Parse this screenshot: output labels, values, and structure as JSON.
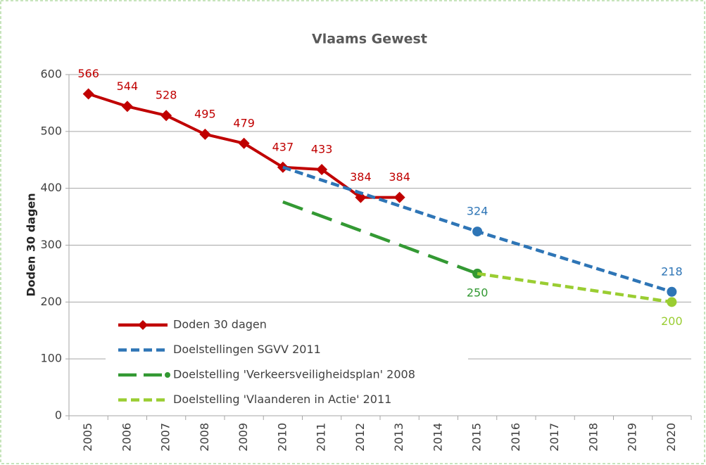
{
  "chart_data": {
    "type": "line",
    "title": "Vlaams Gewest",
    "y_label": "Doden 30 dagen",
    "categories": [
      "2005",
      "2006",
      "2007",
      "2008",
      "2009",
      "2010",
      "2011",
      "2012",
      "2013",
      "2014",
      "2015",
      "2016",
      "2017",
      "2018",
      "2019",
      "2020"
    ],
    "series": [
      {
        "name": "Doden 30 dagen",
        "color": "#c00000",
        "dash": "solid",
        "values": [
          566,
          544,
          528,
          495,
          479,
          437,
          433,
          384,
          384,
          null,
          null,
          null,
          null,
          null,
          null,
          null
        ]
      },
      {
        "name": "Doelstellingen SGVV 2011",
        "color": "#2e75b6",
        "dash": "dashed",
        "values": [
          null,
          null,
          null,
          null,
          null,
          437,
          null,
          null,
          null,
          null,
          324,
          null,
          null,
          null,
          null,
          218
        ]
      },
      {
        "name": "Doelstelling 'Verkeersveiligheidsplan' 2008",
        "color": "#339933",
        "dash": "long-dash",
        "values": [
          null,
          null,
          null,
          null,
          null,
          376,
          null,
          null,
          null,
          null,
          250,
          null,
          null,
          null,
          null,
          null
        ]
      },
      {
        "name": "Doelstelling 'Vlaanderen in Actie' 2011",
        "color": "#9acd32",
        "dash": "dashed",
        "values": [
          null,
          null,
          null,
          null,
          null,
          null,
          null,
          null,
          null,
          null,
          250,
          null,
          null,
          null,
          null,
          200
        ]
      }
    ],
    "connect_gaps": true,
    "ylim": [
      0,
      600
    ],
    "yticks": [
      0,
      100,
      200,
      300,
      400,
      500,
      600
    ],
    "grid": true
  }
}
